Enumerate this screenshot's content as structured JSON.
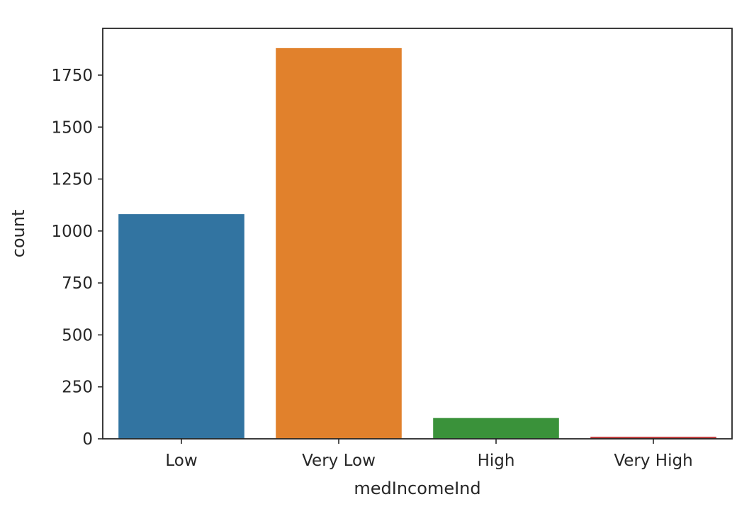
{
  "chart_data": {
    "type": "bar",
    "xlabel": "medIncomeInd",
    "ylabel": "count",
    "categories": [
      "Low",
      "Very Low",
      "High",
      "Very High"
    ],
    "values": [
      1081,
      1880,
      100,
      10
    ],
    "colors": [
      "#3274a1",
      "#e1812c",
      "#3a923a",
      "#c03d3e"
    ],
    "ylim": [
      0,
      1975
    ],
    "yticks": [
      0,
      250,
      500,
      750,
      1000,
      1250,
      1500,
      1750
    ],
    "grid": false,
    "legend": "none"
  }
}
